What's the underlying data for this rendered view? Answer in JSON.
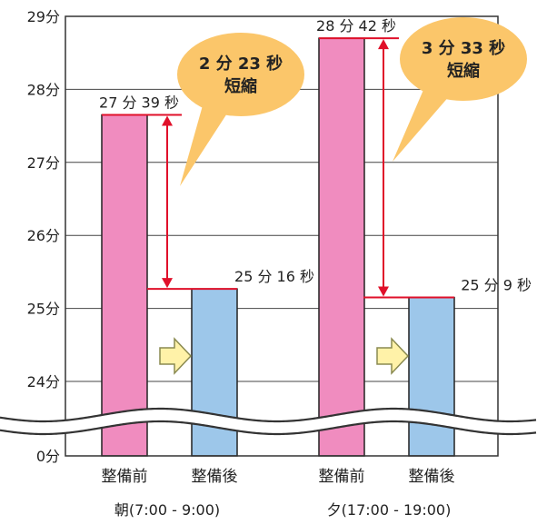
{
  "chart_data": {
    "type": "bar",
    "y_axis": {
      "tick_labels": [
        "0分",
        "24分",
        "25分",
        "26分",
        "27分",
        "28分",
        "29分"
      ],
      "ylim_minutes": [
        24,
        29
      ],
      "broken_axis": true,
      "grid": true
    },
    "groups": [
      {
        "label": "朝(7:00 - 9:00)",
        "bars": [
          {
            "category": "整備前",
            "value_seconds": 1659,
            "label": "27 分 39 秒",
            "color": "#f08cbf"
          },
          {
            "category": "整備後",
            "value_seconds": 1516,
            "label": "25 分 16 秒",
            "color": "#9dc7ea"
          }
        ],
        "reduction": {
          "line1": "2 分 23 秒",
          "line2": "短縮"
        }
      },
      {
        "label": "夕(17:00 - 19:00)",
        "bars": [
          {
            "category": "整備前",
            "value_seconds": 1722,
            "label": "28 分 42 秒",
            "color": "#f08cbf"
          },
          {
            "category": "整備後",
            "value_seconds": 1509,
            "label": "25 分 9 秒",
            "color": "#9dc7ea"
          }
        ],
        "reduction": {
          "line1": "3 分 33 秒",
          "line2": "短縮"
        }
      }
    ],
    "colors": {
      "arrow": "#e0102a",
      "callout_fill": "#fbc66a",
      "flow_arrow_fill": "#fff2a8",
      "flow_arrow_stroke": "#8a8a50"
    }
  }
}
